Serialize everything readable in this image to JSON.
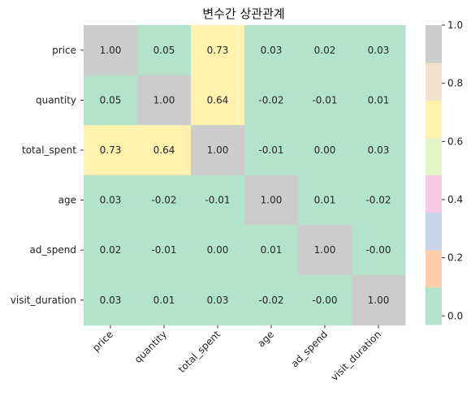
{
  "chart_data": {
    "type": "heatmap",
    "title": "변수간 상관관계",
    "row_labels": [
      "price",
      "quantity",
      "total_spent",
      "age",
      "ad_spend",
      "visit_duration"
    ],
    "col_labels": [
      "price",
      "quantity",
      "total_spent",
      "age",
      "ad_spend",
      "visit_duration"
    ],
    "values": [
      [
        1.0,
        0.05,
        0.73,
        0.03,
        0.02,
        0.03
      ],
      [
        0.05,
        1.0,
        0.64,
        -0.02,
        -0.01,
        0.01
      ],
      [
        0.73,
        0.64,
        1.0,
        -0.01,
        0.0,
        0.03
      ],
      [
        0.03,
        -0.02,
        -0.01,
        1.0,
        0.01,
        -0.02
      ],
      [
        0.02,
        -0.01,
        0.0,
        0.01,
        1.0,
        -0.0
      ],
      [
        0.03,
        0.01,
        0.03,
        -0.02,
        -0.0,
        1.0
      ]
    ],
    "cell_labels": [
      [
        "1.00",
        "0.05",
        "0.73",
        "0.03",
        "0.02",
        "0.03"
      ],
      [
        "0.05",
        "1.00",
        "0.64",
        "-0.02",
        "-0.01",
        "0.01"
      ],
      [
        "0.73",
        "0.64",
        "1.00",
        "-0.01",
        "0.00",
        "0.03"
      ],
      [
        "0.03",
        "-0.02",
        "-0.01",
        "1.00",
        "0.01",
        "-0.02"
      ],
      [
        "0.02",
        "-0.01",
        "0.00",
        "0.01",
        "1.00",
        "-0.00"
      ],
      [
        "0.03",
        "0.01",
        "0.03",
        "-0.02",
        "-0.00",
        "1.00"
      ]
    ],
    "colorbar": {
      "range": [
        -0.03,
        1.0
      ],
      "ticks": [
        0.0,
        0.2,
        0.4,
        0.6,
        0.8,
        1.0
      ],
      "tick_labels": [
        "0.0",
        "0.2",
        "0.4",
        "0.6",
        "0.8",
        "1.0"
      ],
      "colors": [
        "#b3e2cd",
        "#fdcdac",
        "#cbd5e8",
        "#f4cae4",
        "#e6f5c9",
        "#fff2ae",
        "#f1e2cc",
        "#cccccc"
      ]
    }
  }
}
